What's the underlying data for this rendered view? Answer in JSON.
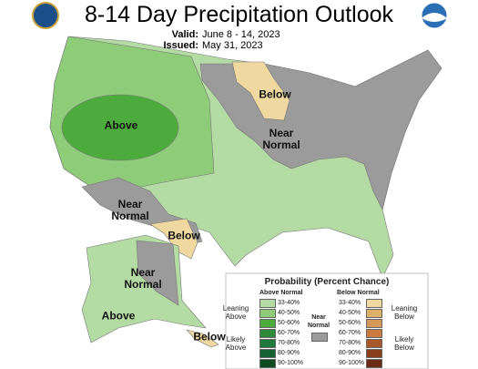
{
  "header": {
    "title": "8-14 Day Precipitation Outlook",
    "valid_label": "Valid:",
    "valid": "June 8 - 14, 2023",
    "issued_label": "Issued:",
    "issued": "May 31, 2023"
  },
  "map_labels": [
    "Above",
    "Below",
    "Near Normal",
    "Near Normal",
    "Below",
    "Near Normal",
    "Above",
    "Below"
  ],
  "legend": {
    "title": "Probability (Percent Chance)",
    "above_header": "Above Normal",
    "below_header": "Below Normal",
    "near_label": "Near Normal",
    "near_color": "#9b9b9b",
    "above_groups": [
      "Leaning Above",
      "Likely Above"
    ],
    "below_groups": [
      "Leaning Below",
      "Likely Below"
    ],
    "above": [
      {
        "label": "33-40%",
        "color": "#b5dba5"
      },
      {
        "label": "40-50%",
        "color": "#8fcc7a"
      },
      {
        "label": "50-60%",
        "color": "#4daa3d"
      },
      {
        "label": "60-70%",
        "color": "#2e8a3a"
      },
      {
        "label": "70-80%",
        "color": "#1e7a3c"
      },
      {
        "label": "80-90%",
        "color": "#146131"
      },
      {
        "label": "90-100%",
        "color": "#0d4a1e"
      }
    ],
    "below": [
      {
        "label": "33-40%",
        "color": "#f0d9a0"
      },
      {
        "label": "40-50%",
        "color": "#ddb16a"
      },
      {
        "label": "50-60%",
        "color": "#d6975a"
      },
      {
        "label": "60-70%",
        "color": "#c97a3e"
      },
      {
        "label": "70-80%",
        "color": "#a9582a"
      },
      {
        "label": "80-90%",
        "color": "#8a3f1c"
      },
      {
        "label": "90-100%",
        "color": "#6b2a14"
      }
    ]
  }
}
